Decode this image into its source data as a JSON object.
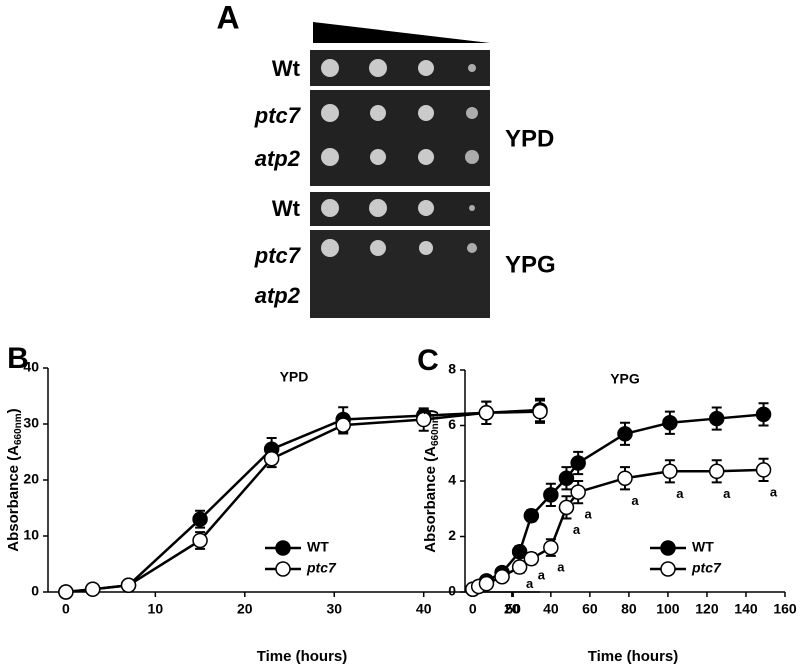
{
  "panel_a": {
    "label": "A",
    "rows": [
      "Wt",
      "ptc7",
      "atp2",
      "Wt",
      "ptc7",
      "atp2"
    ],
    "media": [
      "YPD",
      "YPG"
    ]
  },
  "chart_data": [
    {
      "type": "line",
      "panel": "B",
      "title": "YPD",
      "x_label": "Time (hours)",
      "y_label": "Absorbance (A",
      "y_label_sub": "660nm",
      "y_label_end": ")",
      "x": [
        0,
        3,
        7,
        15,
        23,
        31,
        40,
        47,
        53
      ],
      "series": [
        {
          "name": "WT",
          "color": "#000000",
          "values": [
            0,
            0.5,
            1.2,
            13,
            25.5,
            30.8,
            31.5,
            32,
            32.5
          ],
          "errors": [
            0,
            0,
            0,
            1.5,
            2,
            2.2,
            1,
            2,
            2
          ]
        },
        {
          "name": "ptc7",
          "color": "#ffffff",
          "values": [
            0,
            0.5,
            1.2,
            9.2,
            23.8,
            29.8,
            30.8,
            32,
            32.2
          ],
          "errors": [
            0,
            0,
            0,
            1.5,
            1.5,
            1.5,
            2,
            2,
            2
          ]
        }
      ],
      "xlim": [
        -2,
        53
      ],
      "xticks": [
        0,
        10,
        20,
        30,
        40,
        50
      ],
      "ylim": [
        0,
        40
      ],
      "yticks": [
        0,
        10,
        20,
        30,
        40
      ],
      "grid": false,
      "legend": "lower right"
    },
    {
      "type": "line",
      "panel": "C",
      "title": "YPG",
      "x_label": "Time (hours)",
      "y_label": "Absorbance (A",
      "y_label_sub": "660nm",
      "y_label_end": ")",
      "x": [
        0,
        3,
        7,
        15,
        24,
        30,
        40,
        48,
        54,
        78,
        101,
        125,
        149
      ],
      "series": [
        {
          "name": "WT",
          "color": "#000000",
          "values": [
            0.1,
            0.2,
            0.4,
            0.7,
            1.45,
            2.75,
            3.5,
            4.1,
            4.65,
            5.7,
            6.1,
            6.25,
            6.4
          ],
          "errors": [
            0,
            0,
            0,
            0.1,
            0.2,
            0.2,
            0.4,
            0.4,
            0.4,
            0.4,
            0.4,
            0.4,
            0.4
          ],
          "labels": [
            null,
            null,
            null,
            null,
            null,
            null,
            null,
            null,
            null,
            null,
            null,
            null,
            null
          ]
        },
        {
          "name": "ptc7",
          "color": "#ffffff",
          "values": [
            0.1,
            0.2,
            0.3,
            0.55,
            0.9,
            1.2,
            1.6,
            3.05,
            3.6,
            4.1,
            4.35,
            4.35,
            4.4
          ],
          "errors": [
            0,
            0,
            0,
            0.1,
            0.2,
            0.2,
            0.3,
            0.4,
            0.4,
            0.4,
            0.4,
            0.4,
            0.4
          ],
          "labels": [
            null,
            null,
            null,
            null,
            "a",
            "a",
            "a",
            "a",
            "a",
            "a",
            "a",
            "a",
            "a"
          ]
        }
      ],
      "xlim": [
        -4,
        160
      ],
      "xticks": [
        0,
        20,
        40,
        60,
        80,
        100,
        120,
        140,
        160
      ],
      "ylim": [
        0,
        8
      ],
      "yticks": [
        0,
        2,
        4,
        6,
        8
      ],
      "grid": false,
      "legend": "lower right"
    }
  ]
}
